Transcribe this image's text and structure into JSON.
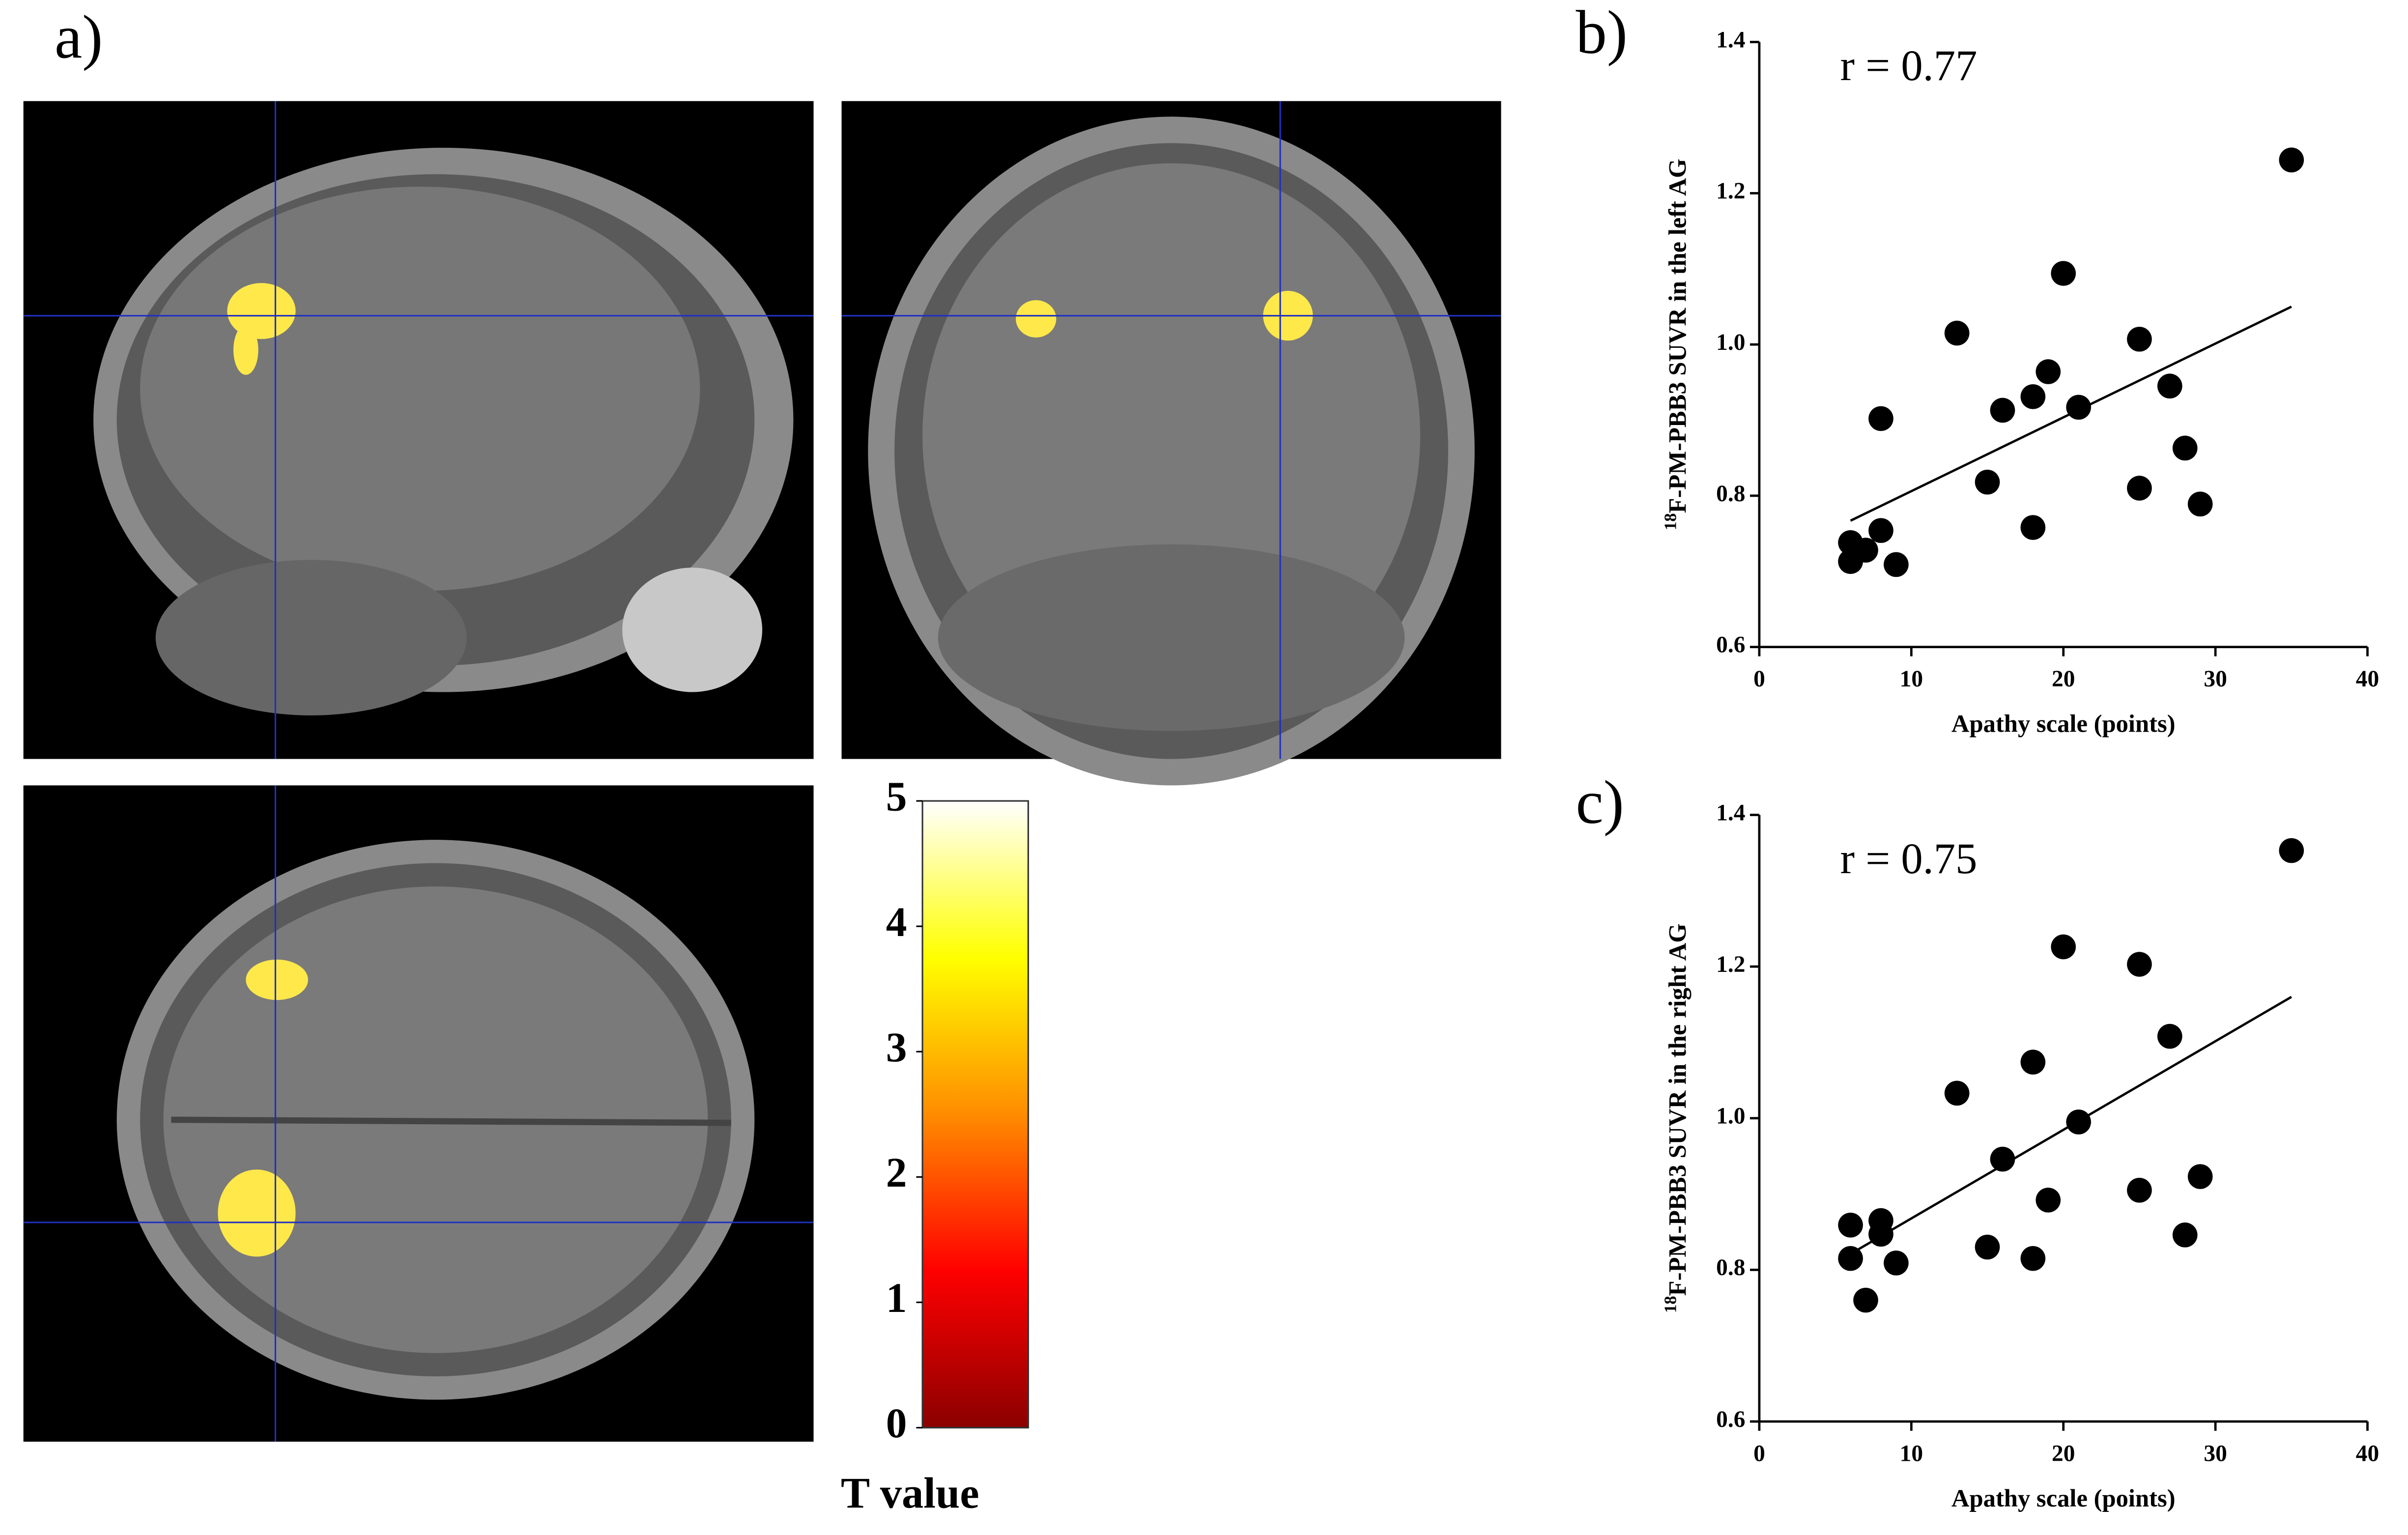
{
  "chart_data": [
    {
      "type": "colorbar",
      "panel_label": "a)",
      "label": "T value",
      "colors": [
        "#8b0000",
        "#ff0000",
        "#ff8c00",
        "#ffff00",
        "#ffffff"
      ],
      "ylim": [
        0,
        5
      ],
      "yticks": [
        0,
        1,
        2,
        3,
        4,
        5
      ]
    },
    {
      "type": "scatter",
      "panel_label": "b)",
      "annotation": "r = 0.77",
      "xlabel": "Apathy scale (points)",
      "ylabel_superscript": "18",
      "ylabel": "F-PM-PBB3 SUVR in the left AG",
      "color": "#000000",
      "x": [
        35,
        20,
        13,
        25,
        19,
        27,
        18,
        21,
        16,
        8,
        28,
        15,
        25,
        29,
        18,
        8,
        6,
        7,
        6,
        9
      ],
      "values": [
        1.244,
        1.094,
        1.015,
        1.007,
        0.964,
        0.945,
        0.931,
        0.917,
        0.913,
        0.902,
        0.863,
        0.818,
        0.81,
        0.789,
        0.758,
        0.754,
        0.738,
        0.728,
        0.713,
        0.709
      ],
      "trendline": {
        "x": [
          6,
          35
        ],
        "y": [
          0.767,
          1.05
        ]
      },
      "xlim": [
        0,
        40
      ],
      "xticks": [
        0,
        10,
        20,
        30,
        40
      ],
      "ylim": [
        0.6,
        1.4
      ],
      "yticks": [
        0.6,
        0.8,
        {
          "value": 1,
          "label": "1.0"
        },
        1.2,
        1.4
      ]
    },
    {
      "type": "scatter",
      "panel_label": "c)",
      "annotation": "r = 0.75",
      "xlabel": "Apathy scale (points)",
      "ylabel_superscript": "18",
      "ylabel": "F-PM-PBB3 SUVR in the right AG",
      "color": "#000000",
      "x": [
        35,
        20,
        25,
        27,
        18,
        13,
        21,
        16,
        29,
        25,
        19,
        8,
        6,
        8,
        28,
        15,
        18,
        6,
        9,
        7
      ],
      "values": [
        1.353,
        1.226,
        1.203,
        1.108,
        1.074,
        1.033,
        0.995,
        0.946,
        0.923,
        0.905,
        0.892,
        0.865,
        0.859,
        0.847,
        0.846,
        0.83,
        0.815,
        0.815,
        0.809,
        0.76
      ],
      "trendline": {
        "x": [
          6,
          35
        ],
        "y": [
          0.821,
          1.16
        ]
      },
      "xlim": [
        0,
        40
      ],
      "xticks": [
        0,
        10,
        20,
        30,
        40
      ],
      "ylim": [
        0.6,
        1.4
      ],
      "yticks": [
        0.6,
        0.8,
        {
          "value": 1,
          "label": "1.0"
        },
        1.2,
        1.4
      ]
    }
  ]
}
